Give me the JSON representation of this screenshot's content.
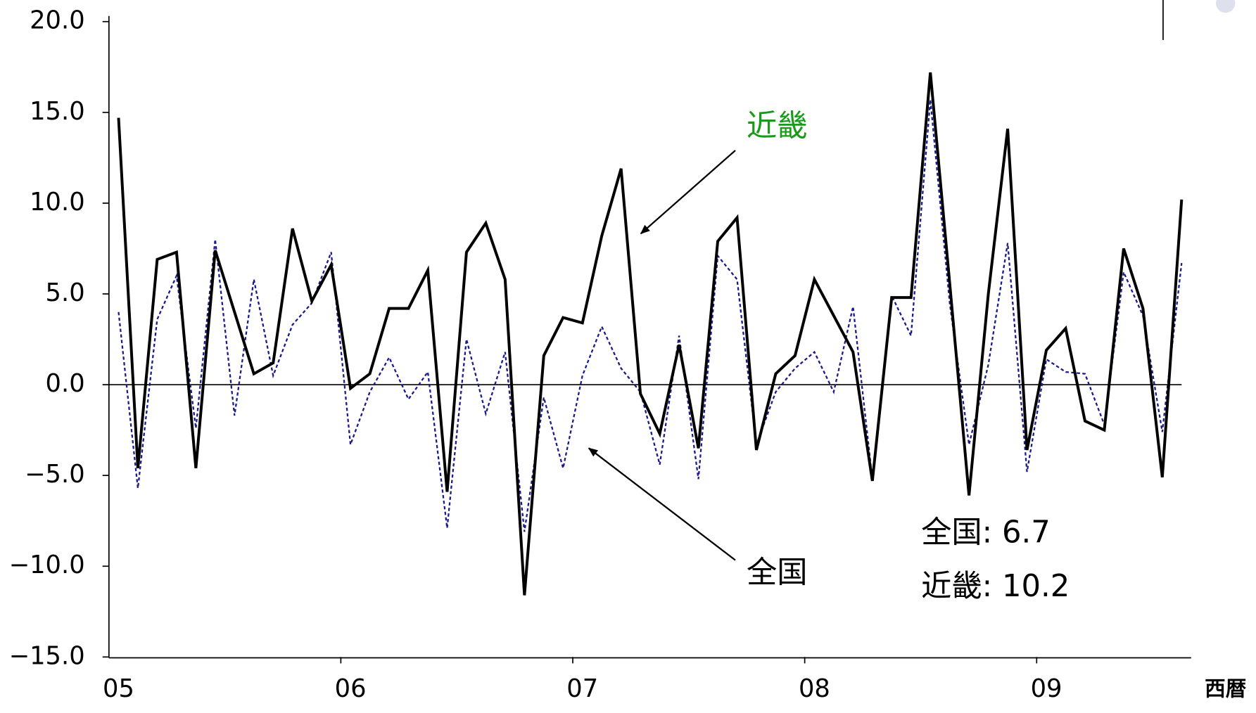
{
  "chart_data": {
    "type": "line",
    "categories": [
      "05",
      null,
      null,
      null,
      null,
      null,
      null,
      null,
      null,
      null,
      null,
      null,
      "06",
      null,
      null,
      null,
      null,
      null,
      null,
      null,
      null,
      null,
      null,
      null,
      "07",
      null,
      null,
      null,
      null,
      null,
      null,
      null,
      null,
      null,
      null,
      null,
      "08",
      null,
      null,
      null,
      null,
      null,
      null,
      null,
      null,
      null,
      null,
      null,
      "09",
      null,
      null,
      null,
      null,
      null,
      null,
      null
    ],
    "x_label": "西暦",
    "ylim": [
      -15,
      20
    ],
    "yticks": [
      {
        "value": 20,
        "label": "20.0"
      },
      {
        "value": 15,
        "label": "15.0"
      },
      {
        "value": 10,
        "label": "10.0"
      },
      {
        "value": 5,
        "label": "5.0"
      },
      {
        "value": 0,
        "label": "0.0"
      },
      {
        "value": -5,
        "label": "−5.0"
      },
      {
        "value": -10,
        "label": "−10.0"
      },
      {
        "value": -15,
        "label": "−15.0"
      }
    ],
    "series": [
      {
        "name": "近畿",
        "color": "#000000",
        "label_color": "#1a9a1a",
        "dash": "solid",
        "values": [
          14.7,
          -4.6,
          6.9,
          7.3,
          -4.6,
          7.4,
          4.0,
          0.6,
          1.2,
          8.6,
          4.6,
          6.6,
          -0.2,
          0.6,
          4.2,
          4.2,
          6.3,
          -5.9,
          7.3,
          8.9,
          5.8,
          -11.6,
          1.6,
          3.7,
          3.4,
          8.2,
          11.9,
          -0.5,
          -2.7,
          2.2,
          -3.5,
          7.9,
          9.2,
          -3.6,
          0.6,
          1.6,
          5.8,
          3.8,
          1.8,
          -5.3,
          4.8,
          4.8,
          17.2,
          5.6,
          -6.1,
          5.0,
          14.1,
          -3.6,
          1.9,
          3.1,
          -2.0,
          -2.5,
          7.5,
          4.2,
          -5.1,
          10.2
        ]
      },
      {
        "name": "全国",
        "color": "#1a1a8c",
        "label_color": "#000000",
        "dash": "dotted",
        "values": [
          4.0,
          -5.7,
          3.6,
          6.0,
          -2.4,
          8.0,
          -1.7,
          5.8,
          0.5,
          3.3,
          4.5,
          7.3,
          -3.3,
          -0.4,
          1.5,
          -0.8,
          0.7,
          -7.9,
          2.5,
          -1.6,
          1.8,
          -8.1,
          -0.7,
          -4.6,
          0.5,
          3.2,
          0.9,
          -0.4,
          -4.4,
          2.7,
          -5.2,
          7.1,
          5.8,
          -3.3,
          -0.4,
          0.9,
          1.8,
          -0.4,
          4.3,
          -5.2,
          4.9,
          2.7,
          15.7,
          4.5,
          -3.3,
          1.1,
          7.8,
          -4.8,
          1.4,
          0.7,
          0.6,
          -2.2,
          6.2,
          3.8,
          -2.6,
          6.7
        ]
      }
    ],
    "annotations": [
      "全国:  6.7",
      "近畿: 10.2"
    ]
  }
}
